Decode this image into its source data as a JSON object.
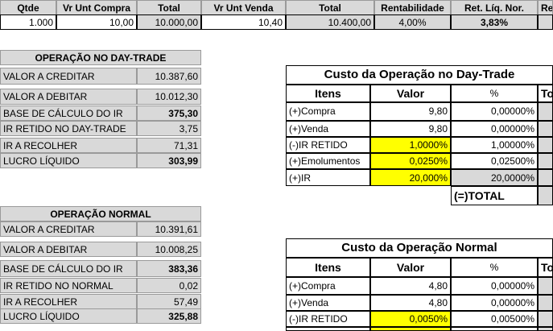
{
  "top": {
    "headers": [
      "Qtde",
      "Vr Unt Compra",
      "Total",
      "Vr Unt Venda",
      "Total",
      "Rentabilidade",
      "Ret. Líq. Nor.",
      "Re"
    ],
    "values": [
      "1.000",
      "10,00",
      "10.000,00",
      "10,40",
      "10.400,00",
      "4,00%",
      "3,83%"
    ]
  },
  "daytrade": {
    "title": "OPERAÇÃO NO DAY-TRADE",
    "rows": [
      {
        "label": "VALOR A CREDITAR",
        "value": "10.387,60"
      },
      {
        "label": "VALOR A DEBITAR",
        "value": "10.012,30"
      },
      {
        "label": "BASE DE CÁLCULO DO IR",
        "value": "375,30"
      },
      {
        "label": "IR RETIDO NO DAY-TRADE",
        "value": "3,75"
      },
      {
        "label": "IR A RECOLHER",
        "value": "71,31"
      },
      {
        "label": "LUCRO LÍQUIDO",
        "value": "303,99"
      }
    ]
  },
  "normal": {
    "title": "OPERAÇÃO NORMAL",
    "rows": [
      {
        "label": "VALOR A CREDITAR",
        "value": "10.391,61"
      },
      {
        "label": "VALOR A DEBITAR",
        "value": "10.008,25"
      },
      {
        "label": "BASE DE CÁLCULO  DO IR",
        "value": "383,36"
      },
      {
        "label": "IR RETIDO NO NORMAL",
        "value": "0,02"
      },
      {
        "label": "IR A RECOLHER",
        "value": "57,49"
      },
      {
        "label": "LUCRO LÍQUIDO",
        "value": "325,88"
      }
    ]
  },
  "custo_dt": {
    "title": "Custo da Operação no Day-Trade",
    "headers": [
      "Itens",
      "Valor",
      "%",
      "To"
    ],
    "rows": [
      {
        "item": "(+)Compra",
        "valor": "9,80",
        "pct": "0,00000%"
      },
      {
        "item": "(+)Venda",
        "valor": "9,80",
        "pct": "0,00000%"
      },
      {
        "item": "(-)IR RETIDO",
        "valor": "1,0000%",
        "pct": "1,00000%"
      },
      {
        "item": "(+)Emolumentos",
        "valor": "0,0250%",
        "pct": "0,02500%"
      },
      {
        "item": "(+)IR",
        "valor": "20,000%",
        "pct": "20,0000%"
      }
    ],
    "total_label": "(=)TOTAL"
  },
  "custo_normal": {
    "title": "Custo da Operação Normal",
    "headers": [
      "Itens",
      "Valor",
      "%",
      "To"
    ],
    "rows": [
      {
        "item": "(+)Compra",
        "valor": "4,80",
        "pct": "0,00000%"
      },
      {
        "item": "(+)Venda",
        "valor": "4,80",
        "pct": "0,00000%"
      },
      {
        "item": "(-)IR RETIDO",
        "valor": "0,0050%",
        "pct": "0,00500%"
      }
    ]
  },
  "colors": {
    "grey": "#d9d9d9",
    "highlight": "#ffff00"
  }
}
